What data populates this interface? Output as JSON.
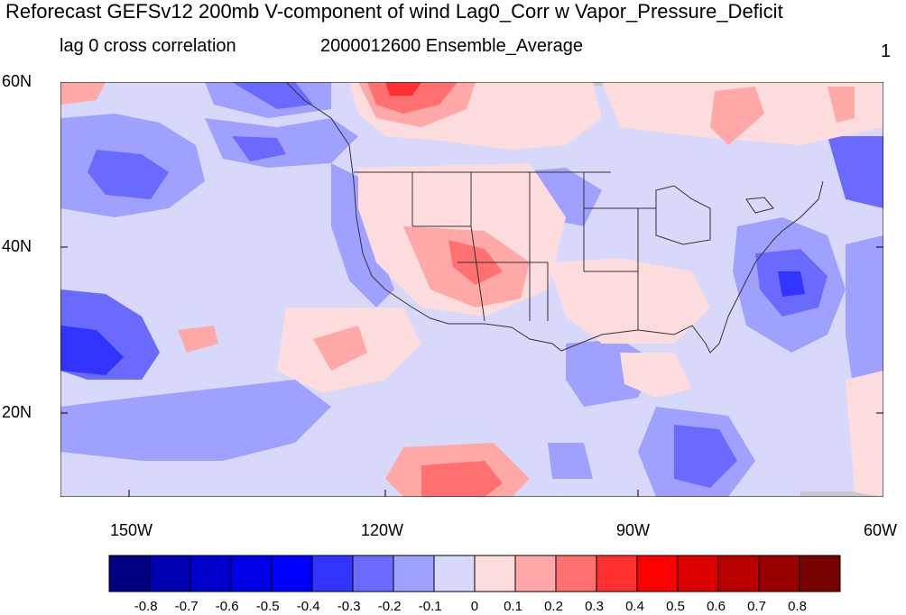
{
  "title": "Reforecast GEFSv12 200mb V-component of wind Lag0_Corr w Vapor_Pressure_Deficit",
  "subtitle_left": "lag 0 cross correlation",
  "subtitle_center": "2000012600 Ensemble_Average",
  "subtitle_right": "1",
  "lat_labels": [
    "60N",
    "40N",
    "20N"
  ],
  "lon_labels": [
    "150W",
    "120W",
    "90W",
    "60W"
  ],
  "colorbar": {
    "labels": [
      "-0.8",
      "-0.7",
      "-0.6",
      "-0.5",
      "-0.4",
      "-0.3",
      "-0.2",
      "-0.1",
      "0",
      "0.1",
      "0.2",
      "0.3",
      "0.4",
      "0.5",
      "0.6",
      "0.7",
      "0.8"
    ],
    "colors": [
      "#000080",
      "#0000b3",
      "#0000cc",
      "#0000e6",
      "#0000ff",
      "#3333ff",
      "#6a6aff",
      "#a0a0ff",
      "#d8d8fa",
      "#fcdcdc",
      "#ffa8a8",
      "#ff7070",
      "#ff3030",
      "#ff0000",
      "#dd0000",
      "#bb0000",
      "#990000",
      "#770000"
    ]
  },
  "map_colors": {
    "ocean_base": "#d8d8fa",
    "neg_light": "#a0a0ff",
    "neg_med": "#6a6aff",
    "neg_strong": "#3333ff",
    "pos_light": "#fcdcdc",
    "pos_med": "#ffa8a8",
    "pos_strong": "#ff7070",
    "pos_max": "#ff3030",
    "missing": "#c8c8c8"
  }
}
